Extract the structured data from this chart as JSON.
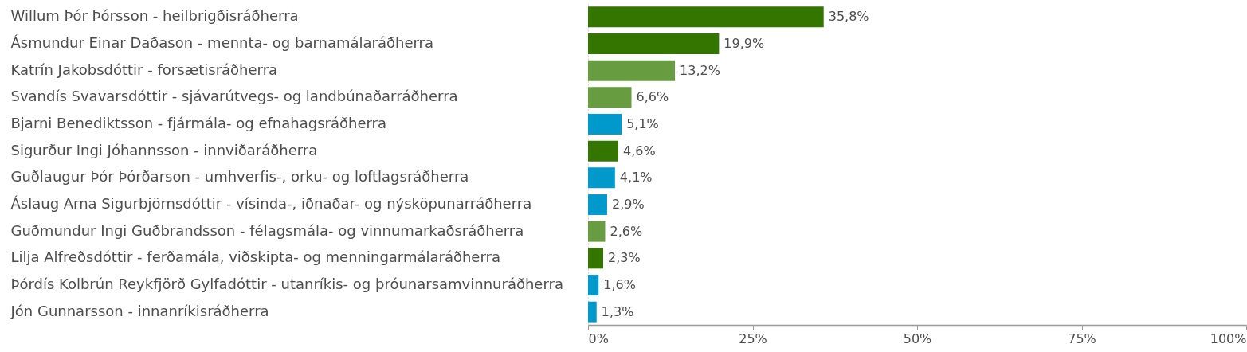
{
  "chart_data": {
    "type": "bar",
    "orientation": "horizontal",
    "categories": [
      "Willum Þór Þórsson - heilbrigðisráðherra",
      "Ásmundur Einar Daðason - mennta- og barnamálaráðherra",
      "Katrín Jakobsdóttir - forsætisráðherra",
      "Svandís Svavarsdóttir - sjávarútvegs- og landbúnaðarráðherra",
      "Bjarni Benediktsson - fjármála- og efnahagsráðherra",
      "Sigurður Ingi Jóhannsson - innviðaráðherra",
      "Guðlaugur Þór Þórðarson - umhverfis-, orku- og loftlagsráðherra",
      "Áslaug Arna Sigurbjörnsdóttir - vísinda-, iðnaðar- og nýsköpunarráðherra",
      "Guðmundur Ingi Guðbrandsson - félagsmála- og vinnumarkaðsráðherra",
      "Lilja Alfreðsdóttir - ferðamála, viðskipta- og menningarmálaráðherra",
      "Þórdís Kolbrún Reykfjörð Gylfadóttir - utanríkis- og þróunarsamvinnuráðherra",
      "Jón Gunnarsson - innanríkisráðherra"
    ],
    "values": [
      35.8,
      19.9,
      13.2,
      6.6,
      5.1,
      4.6,
      4.1,
      2.9,
      2.6,
      2.3,
      1.6,
      1.3
    ],
    "value_labels": [
      "35,8%",
      "19,9%",
      "13,2%",
      "6,6%",
      "5,1%",
      "4,6%",
      "4,1%",
      "2,9%",
      "2,6%",
      "2,3%",
      "1,6%",
      "1,3%"
    ],
    "colors": [
      "#347500",
      "#347500",
      "#679c41",
      "#679c41",
      "#0099cc",
      "#347500",
      "#0099cc",
      "#0099cc",
      "#679c41",
      "#347500",
      "#0099cc",
      "#0099cc"
    ],
    "xlim": [
      0,
      100
    ],
    "xticks": [
      {
        "value": 0,
        "label": "0%"
      },
      {
        "value": 25,
        "label": "25%"
      },
      {
        "value": 50,
        "label": "50%"
      },
      {
        "value": 75,
        "label": "75%"
      },
      {
        "value": 100,
        "label": "100%"
      }
    ],
    "grid": false
  }
}
